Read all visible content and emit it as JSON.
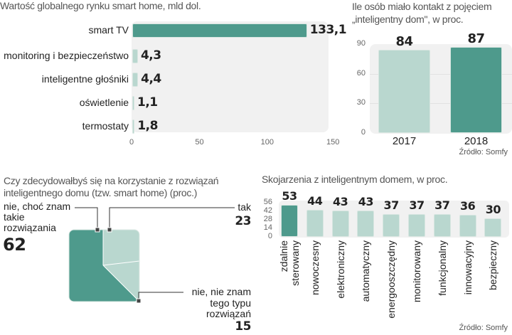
{
  "colors": {
    "dark": "#4e9a8c",
    "light": "#b9d7cf",
    "panel": "#f1f1f1"
  },
  "chart_data": [
    {
      "type": "bar",
      "orientation": "horizontal",
      "title": "Wartość globalnego rynku smart home, mld dol.",
      "categories": [
        "smart TV",
        "monitoring i bezpieczeństwo",
        "inteligentne głośniki",
        "oświetlenie",
        "termostaty"
      ],
      "values": [
        133.1,
        4.3,
        4.4,
        1.1,
        1.8
      ],
      "value_labels": [
        "133,1",
        "4,3",
        "4,4",
        "1,1",
        "1,8"
      ],
      "xlim": [
        0,
        150
      ],
      "xticks": [
        "0",
        "50",
        "100",
        "150"
      ],
      "highlight": [
        true,
        false,
        false,
        false,
        false
      ]
    },
    {
      "type": "bar",
      "title": "Ile osób miało kontakt z pojęciem\n„inteligentny dom\", w proc.",
      "categories": [
        "2017",
        "2018"
      ],
      "values": [
        84,
        87
      ],
      "value_labels": [
        "84",
        "87"
      ],
      "ylim": [
        0,
        90
      ],
      "yticks": [
        "0",
        "30",
        "60",
        "90"
      ],
      "highlight": [
        false,
        true
      ],
      "source": "Źródło: Somfy"
    },
    {
      "type": "pie",
      "title": "Czy zdecydowałbyś się na korzystanie z rozwiązań\ninteligentnego domu (tzw. smart home) (proc.)",
      "slices": [
        {
          "label": "nie, choć znam\ntakie\nrozwiązania",
          "value": 62,
          "value_label": "62"
        },
        {
          "label": "tak",
          "value": 23,
          "value_label": "23"
        },
        {
          "label": "nie, nie znam\ntego typu\nrozwiązań",
          "value": 15,
          "value_label": "15"
        }
      ]
    },
    {
      "type": "bar",
      "title": "Skojarzenia z inteligentnym domem, w proc.",
      "categories": [
        "zdalnie\nsterowany",
        "nowoczesny",
        "elektroniczny",
        "automatyczny",
        "energooszczędny",
        "monitorowany",
        "funkcjonalny",
        "innowacyjny",
        "bezpieczny"
      ],
      "values": [
        53,
        44,
        43,
        43,
        37,
        37,
        37,
        36,
        30
      ],
      "value_labels": [
        "53",
        "44",
        "43",
        "43",
        "37",
        "37",
        "37",
        "36",
        "30"
      ],
      "ylim": [
        0,
        56
      ],
      "yticks": [
        "0",
        "14",
        "28",
        "42",
        "56"
      ],
      "highlight": [
        true,
        false,
        false,
        false,
        false,
        false,
        false,
        false,
        false
      ],
      "source": "Źródło: Somfy"
    }
  ]
}
